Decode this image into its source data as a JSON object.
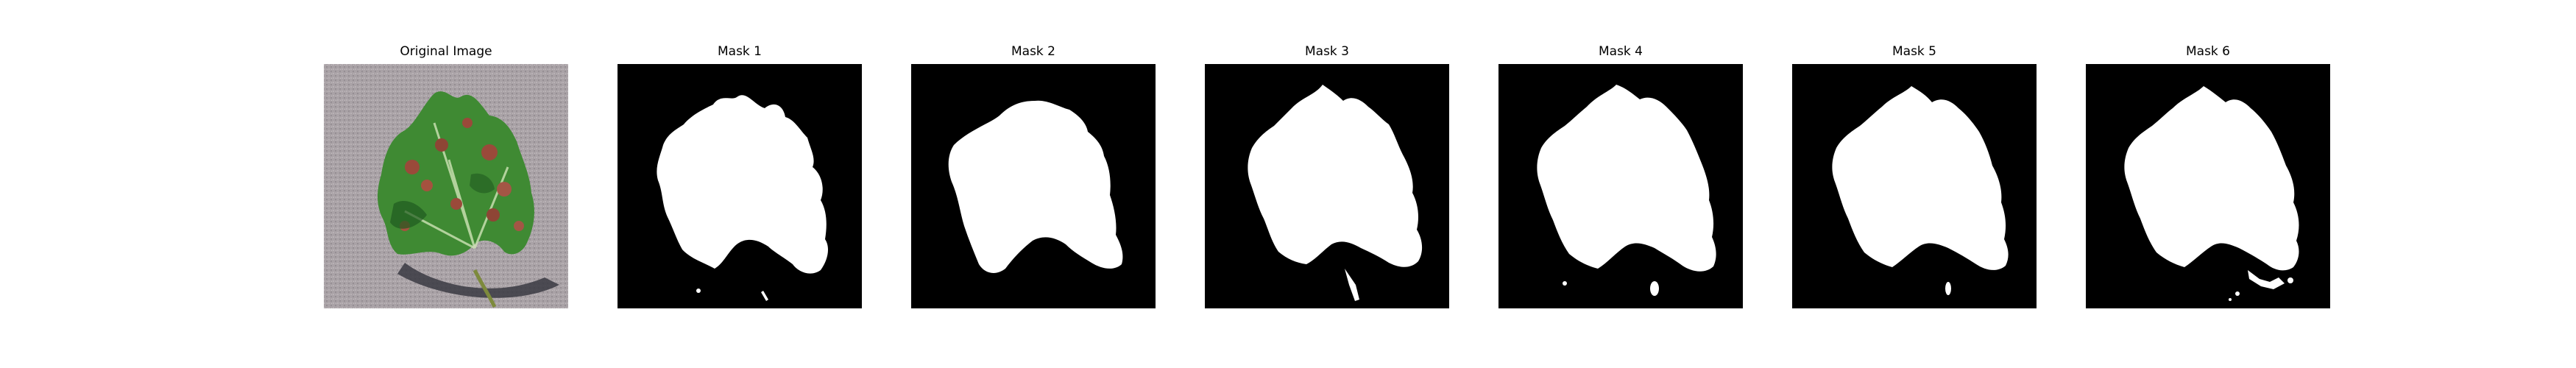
{
  "panels": [
    {
      "title": "Original Image"
    },
    {
      "title": "Mask 1"
    },
    {
      "title": "Mask 2"
    },
    {
      "title": "Mask 3"
    },
    {
      "title": "Mask 4"
    },
    {
      "title": "Mask 5"
    },
    {
      "title": "Mask 6"
    }
  ],
  "colors": {
    "background": "#ffffff",
    "mask_background": "#000000",
    "mask_foreground": "#ffffff",
    "photo_background": "#a9a2a6",
    "leaf_green": "#3f8a33",
    "leaf_dark": "#1f5a1f",
    "lesion": "#9a4a3a",
    "shadow": "#3a3a42"
  }
}
